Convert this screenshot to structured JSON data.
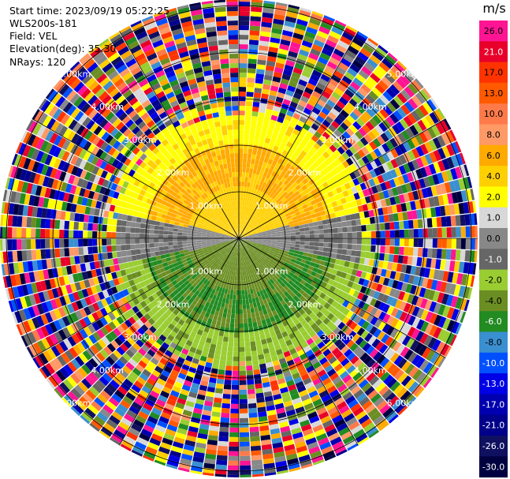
{
  "header": {
    "start_time": "Start time: 2023/09/19 05:22:25",
    "device": "WLS200s-181",
    "field": "Field: VEL",
    "elevation": "Elevation(deg): 35.30",
    "nrays": "NRays: 120"
  },
  "colorbar": {
    "unit": "m/s",
    "ticks": [
      "26.0",
      "21.0",
      "17.0",
      "13.0",
      "10.0",
      "8.0",
      "6.0",
      "4.0",
      "2.0",
      "1.0",
      "0.0",
      "-1.0",
      "-2.0",
      "-4.0",
      "-6.0",
      "-8.0",
      "-10.0",
      "-13.0",
      "-17.0",
      "-21.0",
      "-26.0",
      "-30.0"
    ],
    "colors": [
      "#ff1493",
      "#e8002a",
      "#ff3300",
      "#ff5a00",
      "#ff7a4a",
      "#ff9966",
      "#ffaa00",
      "#ffd000",
      "#ffff00",
      "#d8d8d8",
      "#888888",
      "#666666",
      "#9acd32",
      "#6b8e23",
      "#228b22",
      "#3a8fd0",
      "#0050ff",
      "#0000e6",
      "#0000b0",
      "#00008b",
      "#101060",
      "#000040"
    ]
  },
  "ring_labels": [
    "1.00km",
    "2.00km",
    "3.00km",
    "4.00km",
    "5.00km"
  ],
  "chart_data": {
    "type": "ppi",
    "field": "VEL",
    "unit": "m/s",
    "elevation_deg": 35.3,
    "nrays": 120,
    "range_rings_km": [
      1,
      2,
      3,
      4,
      5
    ],
    "color_scale_m_s": [
      -30.0,
      26.0
    ]
  }
}
